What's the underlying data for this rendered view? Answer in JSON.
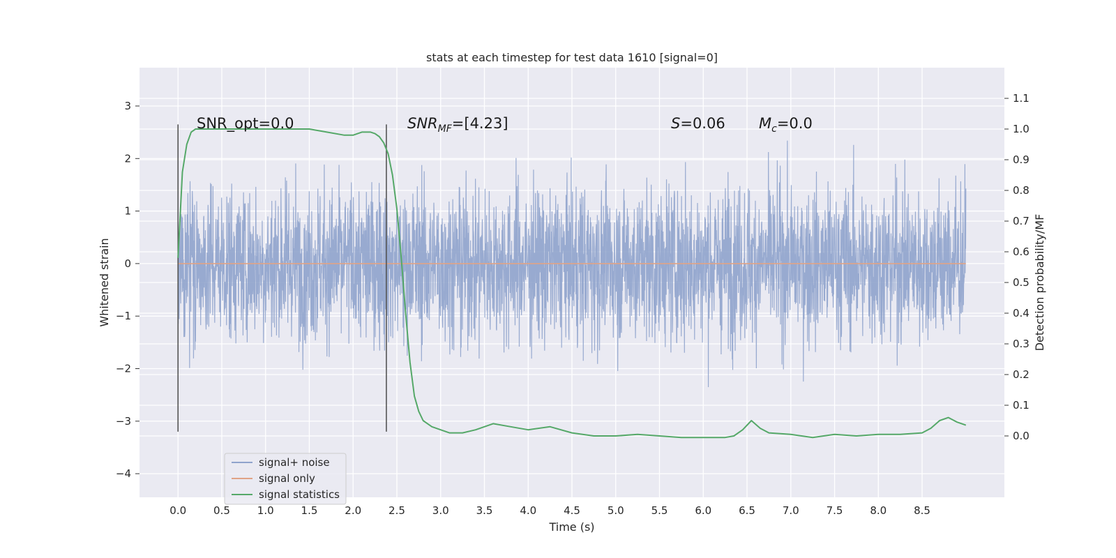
{
  "chart_data": {
    "type": "line",
    "title": "stats at each timestep for test data 1610 [signal=0]",
    "xlabel": "Time (s)",
    "ylabel_left": "Whitened strain",
    "ylabel_right": "Detection probability/MF",
    "xlim": [
      -0.44,
      9.44
    ],
    "ylim_left": [
      -4.45,
      3.73
    ],
    "ylim_right": [
      -0.2,
      1.2
    ],
    "x_ticks": [
      "0.0",
      "0.5",
      "1.0",
      "1.5",
      "2.0",
      "2.5",
      "3.0",
      "3.5",
      "4.0",
      "4.5",
      "5.0",
      "5.5",
      "6.0",
      "6.5",
      "7.0",
      "7.5",
      "8.0",
      "8.5"
    ],
    "y_left_ticks": [
      "3",
      "2",
      "1",
      "0",
      "−1",
      "−2",
      "−3",
      "−4"
    ],
    "y_right_ticks": [
      "1.1",
      "1.0",
      "0.9",
      "0.8",
      "0.7",
      "0.6",
      "0.5",
      "0.4",
      "0.3",
      "0.2",
      "0.1",
      "0.0"
    ],
    "grid": true,
    "legend_position": "lower-left",
    "annotations": {
      "snr_opt": "SNR_opt=0.0",
      "snr_mf_base": "SNR",
      "snr_mf_sub": "MF",
      "snr_mf_value": "=[4.23]",
      "s_var": "S",
      "s_value": "=0.06",
      "mc_var": "M",
      "mc_sub": "c",
      "mc_value": "=0.0"
    },
    "vlines_x": [
      0.0,
      2.38
    ],
    "series": [
      {
        "name": "signal+ noise",
        "color": "#8fa3cc",
        "axis": "left",
        "span": [
          0.0,
          9.0
        ],
        "approx_amplitude": 3.5
      },
      {
        "name": "signal only",
        "color": "#e0a386",
        "axis": "left",
        "x": [
          0.0,
          9.0
        ],
        "y": [
          0.0,
          0.0
        ]
      },
      {
        "name": "signal statistics",
        "color": "#55a868",
        "axis": "right",
        "x": [
          0.0,
          0.05,
          0.1,
          0.15,
          0.2,
          0.3,
          0.5,
          0.8,
          1.0,
          1.2,
          1.5,
          1.7,
          1.9,
          2.0,
          2.1,
          2.2,
          2.25,
          2.3,
          2.35,
          2.4,
          2.45,
          2.5,
          2.55,
          2.6,
          2.65,
          2.7,
          2.75,
          2.8,
          2.85,
          2.9,
          3.0,
          3.1,
          3.25,
          3.4,
          3.6,
          3.8,
          4.0,
          4.25,
          4.5,
          4.75,
          5.0,
          5.25,
          5.5,
          5.75,
          6.0,
          6.25,
          6.35,
          6.45,
          6.55,
          6.65,
          6.75,
          7.0,
          7.25,
          7.5,
          7.75,
          8.0,
          8.25,
          8.5,
          8.6,
          8.7,
          8.8,
          8.9,
          9.0
        ],
        "y": [
          0.58,
          0.86,
          0.95,
          0.99,
          1.0,
          1.0,
          1.0,
          1.0,
          1.0,
          1.0,
          1.0,
          0.99,
          0.98,
          0.98,
          0.99,
          0.99,
          0.985,
          0.975,
          0.955,
          0.92,
          0.85,
          0.74,
          0.58,
          0.4,
          0.24,
          0.13,
          0.08,
          0.05,
          0.04,
          0.03,
          0.02,
          0.01,
          0.01,
          0.02,
          0.04,
          0.03,
          0.02,
          0.03,
          0.01,
          0.0,
          0.0,
          0.005,
          0.0,
          -0.005,
          -0.005,
          -0.005,
          0.0,
          0.02,
          0.05,
          0.025,
          0.01,
          0.005,
          -0.005,
          0.005,
          0.0,
          0.005,
          0.005,
          0.01,
          0.025,
          0.05,
          0.06,
          0.045,
          0.035
        ]
      }
    ]
  }
}
